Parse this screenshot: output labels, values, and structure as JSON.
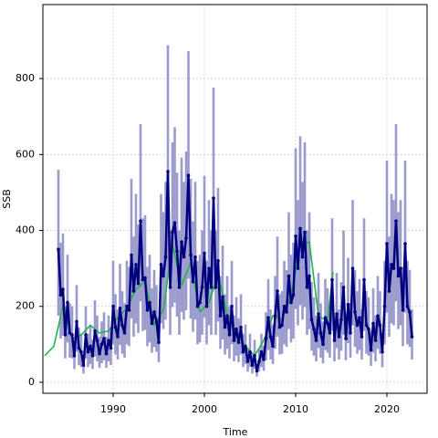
{
  "chart_data": {
    "type": "line",
    "xlabel": "Time",
    "ylabel": "SSB",
    "xlim": [
      1982.3,
      2024.4
    ],
    "ylim": [
      -29,
      995
    ],
    "xticks": [
      1990,
      2000,
      2010,
      2020
    ],
    "yticks": [
      0,
      200,
      400,
      600,
      800
    ],
    "grid": true,
    "series": [
      {
        "color": "#00007f",
        "band_color": "#9a9acd",
        "x": [
          1984,
          1984.25,
          1984.5,
          1984.75,
          1985,
          1985.25,
          1985.5,
          1985.75,
          1986,
          1986.25,
          1986.5,
          1986.75,
          1987,
          1987.25,
          1987.5,
          1987.75,
          1988,
          1988.25,
          1988.5,
          1988.75,
          1989,
          1989.25,
          1989.5,
          1989.75,
          1990,
          1990.25,
          1990.5,
          1990.75,
          1991,
          1991.25,
          1991.5,
          1991.75,
          1992,
          1992.25,
          1992.5,
          1992.75,
          1993,
          1993.25,
          1993.5,
          1993.75,
          1994,
          1994.25,
          1994.5,
          1994.75,
          1995,
          1995.25,
          1995.5,
          1995.75,
          1996,
          1996.25,
          1996.5,
          1996.75,
          1997,
          1997.25,
          1997.5,
          1997.75,
          1998,
          1998.25,
          1998.5,
          1998.75,
          1999,
          1999.25,
          1999.5,
          1999.75,
          2000,
          2000.25,
          2000.5,
          2000.75,
          2001,
          2001.25,
          2001.5,
          2001.75,
          2002,
          2002.25,
          2002.5,
          2002.75,
          2003,
          2003.25,
          2003.5,
          2003.75,
          2004,
          2004.25,
          2004.5,
          2004.75,
          2005,
          2005.25,
          2005.5,
          2005.75,
          2006,
          2006.25,
          2006.5,
          2006.75,
          2007,
          2007.25,
          2007.5,
          2007.75,
          2008,
          2008.25,
          2008.5,
          2008.75,
          2009,
          2009.25,
          2009.5,
          2009.75,
          2010,
          2010.25,
          2010.5,
          2010.75,
          2011,
          2011.25,
          2011.5,
          2011.75,
          2012,
          2012.25,
          2012.5,
          2012.75,
          2013,
          2013.25,
          2013.5,
          2013.75,
          2014,
          2014.25,
          2014.5,
          2014.75,
          2015,
          2015.25,
          2015.5,
          2015.75,
          2016,
          2016.25,
          2016.5,
          2016.75,
          2017,
          2017.25,
          2017.5,
          2017.75,
          2018,
          2018.25,
          2018.5,
          2018.75,
          2019,
          2019.25,
          2019.5,
          2019.75,
          2020,
          2020.25,
          2020.5,
          2020.75,
          2021,
          2021.25,
          2021.5,
          2021.75,
          2022,
          2022.25,
          2022.5,
          2022.75
        ],
        "values": [
          350,
          230,
          245,
          125,
          210,
          130,
          125,
          70,
          160,
          90,
          80,
          45,
          125,
          80,
          95,
          70,
          135,
          110,
          75,
          100,
          115,
          75,
          110,
          90,
          200,
          145,
          120,
          195,
          150,
          130,
          200,
          190,
          335,
          240,
          310,
          260,
          425,
          270,
          275,
          190,
          210,
          155,
          185,
          160,
          105,
          310,
          280,
          330,
          555,
          250,
          395,
          420,
          345,
          250,
          370,
          330,
          380,
          545,
          335,
          265,
          330,
          200,
          210,
          250,
          340,
          200,
          300,
          250,
          485,
          250,
          320,
          175,
          225,
          145,
          175,
          125,
          200,
          110,
          140,
          105,
          145,
          80,
          95,
          55,
          80,
          45,
          70,
          30,
          55,
          80,
          60,
          115,
          170,
          120,
          95,
          175,
          240,
          145,
          150,
          200,
          185,
          280,
          210,
          230,
          385,
          300,
          405,
          330,
          395,
          250,
          280,
          165,
          140,
          110,
          180,
          130,
          100,
          170,
          155,
          130,
          270,
          110,
          180,
          120,
          165,
          250,
          115,
          205,
          130,
          300,
          185,
          150,
          170,
          120,
          270,
          150,
          140,
          85,
          155,
          110,
          175,
          150,
          80,
          200,
          365,
          240,
          310,
          300,
          425,
          280,
          300,
          190,
          365,
          200,
          185,
          120
        ],
        "lower": [
          175,
          115,
          123,
          63,
          105,
          65,
          63,
          35,
          80,
          45,
          40,
          23,
          63,
          40,
          48,
          35,
          68,
          55,
          38,
          50,
          58,
          38,
          55,
          45,
          100,
          73,
          60,
          98,
          75,
          65,
          100,
          95,
          168,
          120,
          155,
          130,
          213,
          135,
          138,
          95,
          105,
          78,
          93,
          80,
          53,
          155,
          140,
          165,
          278,
          125,
          198,
          210,
          173,
          125,
          185,
          165,
          190,
          273,
          168,
          133,
          165,
          100,
          105,
          125,
          170,
          100,
          150,
          125,
          243,
          125,
          160,
          88,
          113,
          73,
          88,
          63,
          100,
          55,
          70,
          53,
          73,
          40,
          48,
          28,
          40,
          23,
          35,
          15,
          28,
          40,
          30,
          58,
          85,
          60,
          48,
          88,
          120,
          73,
          75,
          100,
          93,
          140,
          105,
          115,
          193,
          150,
          203,
          165,
          198,
          125,
          140,
          83,
          70,
          55,
          90,
          65,
          50,
          85,
          78,
          65,
          135,
          55,
          90,
          60,
          83,
          125,
          58,
          103,
          65,
          150,
          93,
          75,
          85,
          60,
          135,
          75,
          70,
          43,
          78,
          55,
          88,
          75,
          40,
          100,
          183,
          120,
          155,
          150,
          213,
          140,
          150,
          95,
          183,
          100,
          93,
          60
        ],
        "upper": [
          560,
          368,
          392,
          200,
          336,
          208,
          200,
          112,
          256,
          144,
          128,
          72,
          200,
          128,
          152,
          112,
          216,
          176,
          120,
          160,
          184,
          120,
          176,
          144,
          320,
          232,
          192,
          312,
          240,
          208,
          320,
          304,
          536,
          384,
          496,
          416,
          680,
          432,
          440,
          304,
          336,
          248,
          296,
          256,
          168,
          496,
          448,
          528,
          888,
          400,
          632,
          672,
          552,
          400,
          592,
          528,
          608,
          872,
          536,
          424,
          528,
          320,
          336,
          400,
          544,
          320,
          480,
          400,
          776,
          400,
          512,
          280,
          360,
          232,
          280,
          200,
          320,
          176,
          224,
          168,
          232,
          128,
          152,
          88,
          128,
          72,
          112,
          48,
          88,
          128,
          96,
          184,
          272,
          192,
          152,
          280,
          384,
          232,
          240,
          320,
          296,
          448,
          336,
          368,
          616,
          480,
          648,
          528,
          632,
          400,
          448,
          264,
          224,
          176,
          288,
          208,
          160,
          272,
          248,
          208,
          432,
          176,
          288,
          192,
          264,
          400,
          184,
          328,
          208,
          480,
          296,
          240,
          272,
          192,
          432,
          240,
          224,
          136,
          248,
          176,
          280,
          240,
          128,
          320,
          584,
          384,
          496,
          480,
          680,
          448,
          480,
          304,
          584,
          320,
          296,
          192
        ]
      },
      {
        "color": "#22b34b",
        "x": [
          1982.5,
          1983.5,
          1984.5,
          1985.5,
          1986.5,
          1987.5,
          1988.5,
          1989.5,
          1990.5,
          1991.5,
          1992.5,
          1993.5,
          1994.5,
          1995.5,
          1996.5,
          1997.5,
          1998.5,
          1999.5,
          2000.5,
          2001.5,
          2002.5,
          2003.5,
          2004.5,
          2005.5,
          2006.5,
          2007.5,
          2008.5,
          2009.5,
          2010.5,
          2011.5,
          2012.5,
          2013.5,
          2014.1
        ],
        "values": [
          70,
          95,
          200,
          115,
          125,
          150,
          130,
          135,
          170,
          195,
          245,
          265,
          150,
          190,
          365,
          255,
          315,
          185,
          210,
          285,
          180,
          130,
          95,
          70,
          110,
          175,
          165,
          230,
          360,
          370,
          175,
          160,
          290
        ]
      }
    ]
  }
}
